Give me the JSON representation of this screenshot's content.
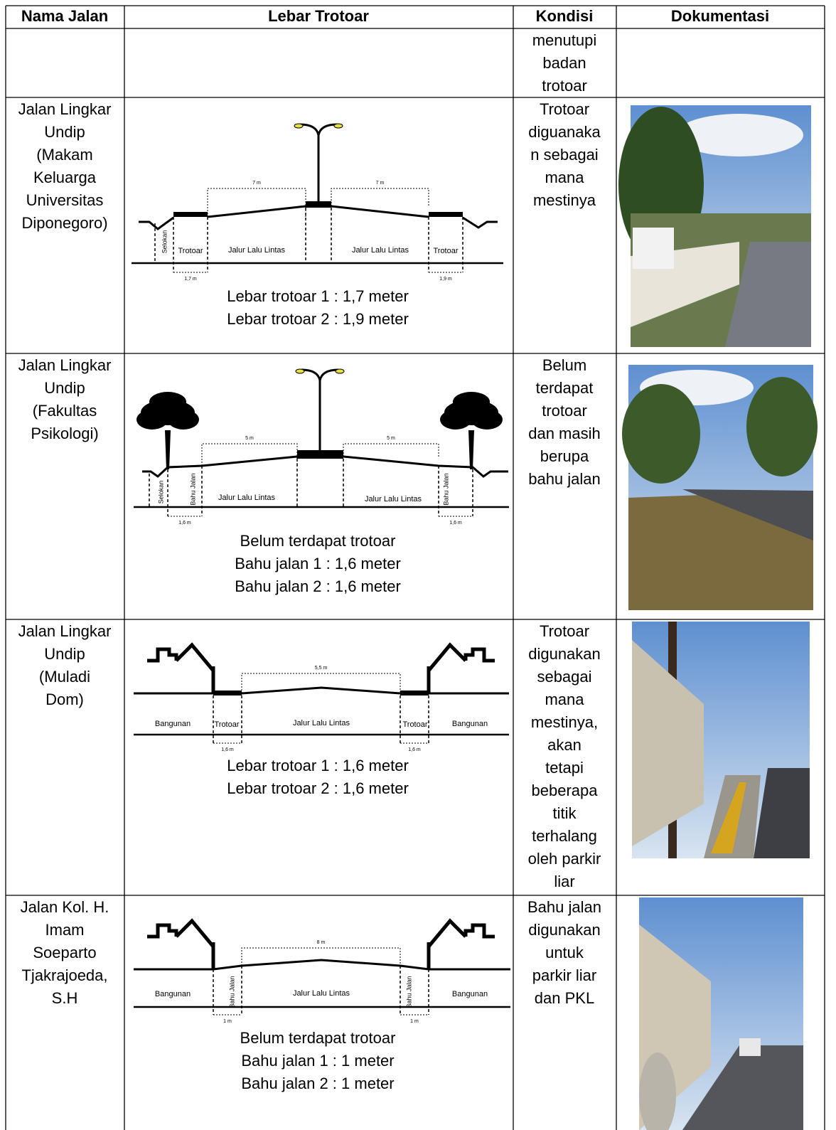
{
  "header": [
    "Nama Jalan",
    "Lebar Trotoar",
    "Kondisi",
    "Dokumentasi"
  ],
  "rows": [
    {
      "condition": [
        "menutupi",
        "badan",
        "trotoar"
      ]
    },
    {
      "name": [
        "Jalan Lingkar",
        "Undip",
        "(Makam",
        "Keluarga",
        "Universitas",
        "Diponegoro)"
      ],
      "diagram": {
        "top_dims": [
          "7 m",
          "7 m"
        ],
        "bottom_dims": [
          "1,7 m",
          "1,9 m"
        ],
        "labels": [
          "Selokan",
          "Trotoar",
          "Jalur Lalu Lintas",
          "Jalur Lalu Lintas",
          "Trotoar"
        ]
      },
      "caption": [
        "Lebar trotoar 1 : 1,7 meter",
        "Lebar trotoar 2 : 1,9 meter"
      ],
      "condition": [
        "Trotoar",
        "diguanaka",
        "n sebagai",
        "mana",
        "mestinya"
      ]
    },
    {
      "name": [
        "Jalan Lingkar",
        "Undip",
        "(Fakultas",
        "Psikologi)"
      ],
      "diagram": {
        "top_dims": [
          "5 m",
          "5 m"
        ],
        "bottom_dims": [
          "1,6 m",
          "1,6 m"
        ],
        "labels": [
          "Selokan",
          "Bahu Jalan",
          "Jalur Lalu Lintas",
          "Jalur Lalu Lintas",
          "Bahu Jalan"
        ]
      },
      "caption": [
        "Belum terdapat trotoar",
        "Bahu jalan 1 : 1,6 meter",
        "Bahu jalan 2 : 1,6 meter"
      ],
      "condition": [
        "Belum",
        "terdapat",
        "trotoar",
        "dan masih",
        "berupa",
        "bahu jalan"
      ]
    },
    {
      "name": [
        "Jalan Lingkar",
        "Undip",
        "(Muladi",
        "Dom)"
      ],
      "diagram": {
        "top_dims": [
          "5,5 m"
        ],
        "bottom_dims": [
          "1,6 m",
          "1,6 m"
        ],
        "labels": [
          "Bangunan",
          "Trotoar",
          "Jalur Lalu Lintas",
          "Trotoar",
          "Bangunan"
        ]
      },
      "caption": [
        "Lebar trotoar 1 : 1,6 meter",
        "Lebar trotoar 2 : 1,6 meter"
      ],
      "condition": [
        "Trotoar",
        "digunakan",
        "sebagai",
        "mana",
        "mestinya,",
        "akan",
        "tetapi",
        "beberapa",
        "titik",
        "terhalang",
        "oleh parkir",
        "liar"
      ]
    },
    {
      "name": [
        "Jalan Kol. H.",
        "Imam",
        "Soeparto",
        "Tjakrajoeda,",
        "S.H"
      ],
      "diagram": {
        "top_dims": [
          "8 m"
        ],
        "bottom_dims": [
          "1 m",
          "1 m"
        ],
        "labels": [
          "Bangunan",
          "Bahu Jalan",
          "Jalur Lalu Lintas",
          "Bahu Jalan",
          "Bangunan"
        ]
      },
      "caption": [
        "Belum terdapat trotoar",
        "Bahu jalan 1 : 1 meter",
        "Bahu jalan 2 : 1 meter"
      ],
      "condition": [
        "Bahu jalan",
        "digunakan",
        "untuk",
        "parkir liar",
        "dan PKL"
      ]
    }
  ]
}
